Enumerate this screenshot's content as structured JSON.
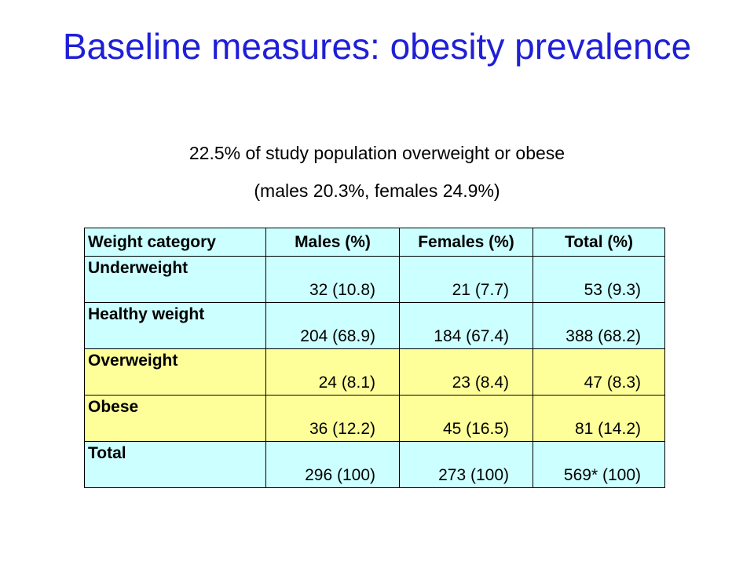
{
  "slide": {
    "title": "Baseline measures: obesity prevalence",
    "subtitle_line1": "22.5% of study population overweight or obese",
    "subtitle_line2": "(males 20.3%, females 24.9%)"
  },
  "table": {
    "headers": [
      "Weight category",
      "Males (%)",
      "Females (%)",
      "Total (%)"
    ],
    "rows": [
      {
        "category": "Underweight",
        "males": "32 (10.8)",
        "females": "21 (7.7)",
        "total": "53 (9.3)",
        "highlight": "cyan"
      },
      {
        "category": "Healthy weight",
        "males": "204 (68.9)",
        "females": "184 (67.4)",
        "total": "388 (68.2)",
        "highlight": "cyan"
      },
      {
        "category": "Overweight",
        "males": "24 (8.1)",
        "females": "23 (8.4)",
        "total": "47 (8.3)",
        "highlight": "yellow"
      },
      {
        "category": "Obese",
        "males": "36 (12.2)",
        "females": "45 (16.5)",
        "total": "81 (14.2)",
        "highlight": "yellow"
      },
      {
        "category": "Total",
        "males": "296 (100)",
        "females": "273 (100)",
        "total": "569* (100)",
        "highlight": "cyan"
      }
    ]
  },
  "colors": {
    "title": "#1f1fd6",
    "cyan": "#ccffff",
    "yellow": "#ffff99"
  }
}
